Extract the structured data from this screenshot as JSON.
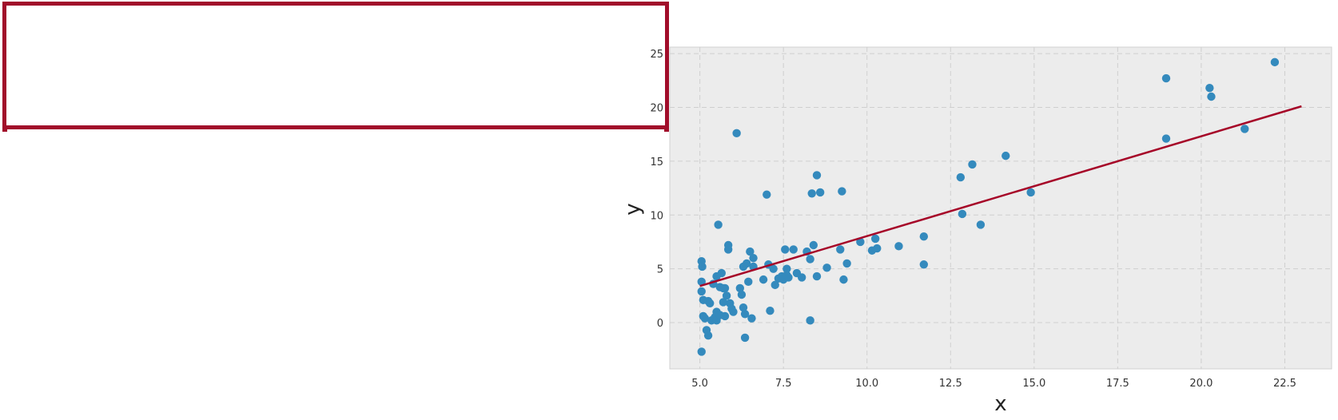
{
  "chart_data": {
    "type": "scatter",
    "title": "",
    "xlabel": "x",
    "ylabel": "y",
    "xlim": [
      4.1,
      23.9
    ],
    "ylim": [
      -4.3,
      25.6
    ],
    "xticks": [
      "5.0",
      "7.5",
      "10.0",
      "12.5",
      "15.0",
      "17.5",
      "20.0",
      "22.5"
    ],
    "xtick_values": [
      5,
      7.5,
      10,
      12.5,
      15,
      17.5,
      20,
      22.5
    ],
    "yticks": [
      "0",
      "5",
      "10",
      "15",
      "20",
      "25"
    ],
    "ytick_values": [
      0,
      5,
      10,
      15,
      20,
      25
    ],
    "grid": true,
    "colors": {
      "points": "#348abd",
      "line": "#a60628",
      "background": "#ececec",
      "grid": "#cfcfcf",
      "highlight": "#a10d2a"
    },
    "points": [
      [
        5.05,
        -2.7
      ],
      [
        5.05,
        5.7
      ],
      [
        5.07,
        5.2
      ],
      [
        5.05,
        3.8
      ],
      [
        5.05,
        2.9
      ],
      [
        5.1,
        2.1
      ],
      [
        5.1,
        0.6
      ],
      [
        5.15,
        0.4
      ],
      [
        5.2,
        -0.7
      ],
      [
        5.25,
        -1.2
      ],
      [
        5.25,
        2.0
      ],
      [
        5.3,
        1.8
      ],
      [
        5.35,
        0.2
      ],
      [
        5.4,
        3.6
      ],
      [
        5.45,
        0.5
      ],
      [
        5.5,
        4.3
      ],
      [
        5.5,
        1.0
      ],
      [
        5.5,
        0.2
      ],
      [
        5.55,
        9.1
      ],
      [
        5.6,
        3.3
      ],
      [
        5.6,
        0.7
      ],
      [
        5.65,
        4.6
      ],
      [
        5.7,
        3.2
      ],
      [
        5.7,
        1.9
      ],
      [
        5.75,
        0.6
      ],
      [
        5.75,
        3.2
      ],
      [
        5.8,
        2.5
      ],
      [
        5.85,
        7.2
      ],
      [
        5.85,
        6.8
      ],
      [
        5.9,
        1.8
      ],
      [
        5.95,
        1.3
      ],
      [
        6.0,
        1.0
      ],
      [
        6.1,
        17.6
      ],
      [
        6.2,
        3.2
      ],
      [
        6.25,
        2.6
      ],
      [
        6.3,
        1.4
      ],
      [
        6.3,
        5.2
      ],
      [
        6.35,
        0.8
      ],
      [
        6.35,
        -1.4
      ],
      [
        6.4,
        5.5
      ],
      [
        6.45,
        3.8
      ],
      [
        6.5,
        6.6
      ],
      [
        6.55,
        0.4
      ],
      [
        6.6,
        6.0
      ],
      [
        6.6,
        5.2
      ],
      [
        6.9,
        4.0
      ],
      [
        7.0,
        11.9
      ],
      [
        7.05,
        5.4
      ],
      [
        7.1,
        1.1
      ],
      [
        7.2,
        5.0
      ],
      [
        7.25,
        3.5
      ],
      [
        7.35,
        4.1
      ],
      [
        7.45,
        4.3
      ],
      [
        7.5,
        4.0
      ],
      [
        7.55,
        6.8
      ],
      [
        7.6,
        5.0
      ],
      [
        7.6,
        4.4
      ],
      [
        7.65,
        4.2
      ],
      [
        7.8,
        6.8
      ],
      [
        7.9,
        4.6
      ],
      [
        8.05,
        4.2
      ],
      [
        8.2,
        6.6
      ],
      [
        8.3,
        5.9
      ],
      [
        8.3,
        0.2
      ],
      [
        8.35,
        12.0
      ],
      [
        8.4,
        7.2
      ],
      [
        8.5,
        13.7
      ],
      [
        8.5,
        4.3
      ],
      [
        8.6,
        12.1
      ],
      [
        8.8,
        5.1
      ],
      [
        9.2,
        6.8
      ],
      [
        9.25,
        12.2
      ],
      [
        9.3,
        4.0
      ],
      [
        9.4,
        5.5
      ],
      [
        9.8,
        7.5
      ],
      [
        10.15,
        6.7
      ],
      [
        10.25,
        7.8
      ],
      [
        10.3,
        6.9
      ],
      [
        10.95,
        7.1
      ],
      [
        11.7,
        8.0
      ],
      [
        11.7,
        5.4
      ],
      [
        12.8,
        13.5
      ],
      [
        12.85,
        10.1
      ],
      [
        13.15,
        14.7
      ],
      [
        13.4,
        9.1
      ],
      [
        14.15,
        15.5
      ],
      [
        14.9,
        12.1
      ],
      [
        18.95,
        22.7
      ],
      [
        18.95,
        17.1
      ],
      [
        20.25,
        21.8
      ],
      [
        20.3,
        21.0
      ],
      [
        21.3,
        18.0
      ],
      [
        22.2,
        24.2
      ]
    ],
    "regression_line": {
      "x": [
        5.0,
        23.0
      ],
      "y": [
        3.4,
        20.1
      ]
    }
  }
}
